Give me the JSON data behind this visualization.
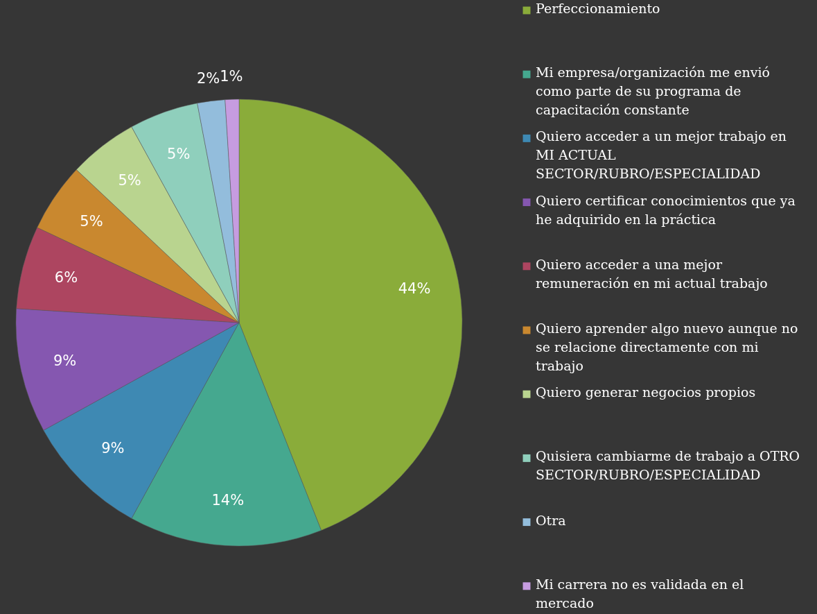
{
  "chart_data": {
    "type": "pie",
    "categories": [
      "Perfeccionamiento",
      "Mi empresa/organización me envió como parte de su programa de capacitación constante",
      "Quiero acceder a un mejor trabajo en MI ACTUAL SECTOR/RUBRO/ESPECIALIDAD",
      "Quiero certificar conocimientos que ya he adquirido en la práctica",
      "Quiero acceder a una mejor remuneración en mi actual trabajo",
      "Quiero aprender algo nuevo aunque no se relacione directamente con mi trabajo",
      "Quiero generar negocios propios",
      "Quisiera cambiarme de trabajo a OTRO SECTOR/RUBRO/ESPECIALIDAD",
      "Otra",
      "Mi carrera no es validada en el mercado"
    ],
    "values": [
      44,
      14,
      9,
      9,
      6,
      5,
      5,
      5,
      2,
      1
    ],
    "colors": [
      "#8aac3a",
      "#45a88f",
      "#3e89b3",
      "#8557b0",
      "#ad4560",
      "#c9882f",
      "#b9d48f",
      "#8fcfbc",
      "#93bddc",
      "#c69ce0"
    ],
    "value_labels": [
      "44%",
      "14%",
      "9%",
      "9%",
      "6%",
      "5%",
      "5%",
      "5%",
      "2%",
      "1%"
    ],
    "legend": "right"
  }
}
